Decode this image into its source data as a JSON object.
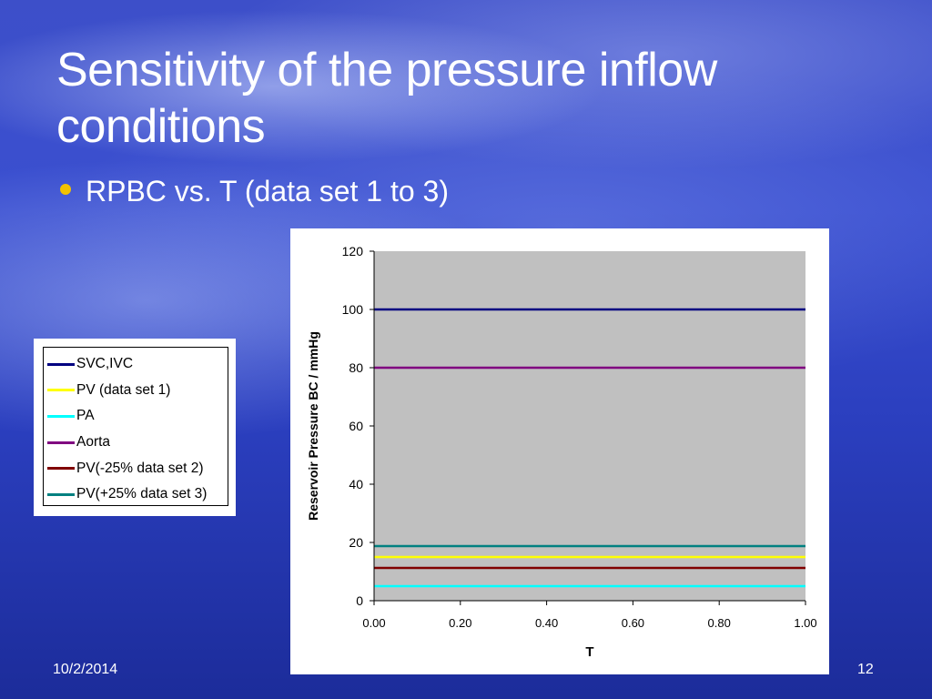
{
  "slide": {
    "title": "Sensitivity of the pressure inflow conditions",
    "bullet": "RPBC vs. T (data set 1 to 3)",
    "date": "10/2/2014",
    "page_number": "12",
    "bullet_color": "#f2c200"
  },
  "chart_data": {
    "type": "line",
    "title": "",
    "xlabel": "T",
    "ylabel": "Reservoir Pressure BC / mmHg",
    "xlim": [
      0,
      1
    ],
    "ylim": [
      0,
      120
    ],
    "x_ticks": [
      "0.00",
      "0.20",
      "0.40",
      "0.60",
      "0.80",
      "1.00"
    ],
    "y_ticks": [
      "0",
      "20",
      "40",
      "60",
      "80",
      "100",
      "120"
    ],
    "plot_background": "#c0c0c0",
    "grid": false,
    "legend_placement": "left, outside chart",
    "series": [
      {
        "name": "SVC,IVC",
        "color": "#000080",
        "x": [
          0,
          1
        ],
        "y": [
          100,
          100
        ]
      },
      {
        "name": "PV (data set 1)",
        "color": "#ffff00",
        "x": [
          0,
          1
        ],
        "y": [
          15,
          15
        ]
      },
      {
        "name": "PA",
        "color": "#00ffff",
        "x": [
          0,
          1
        ],
        "y": [
          5,
          5
        ]
      },
      {
        "name": "Aorta",
        "color": "#800080",
        "x": [
          0,
          1
        ],
        "y": [
          80,
          80
        ]
      },
      {
        "name": "PV(-25% data set 2)",
        "color": "#800000",
        "x": [
          0,
          1
        ],
        "y": [
          11.25,
          11.25
        ]
      },
      {
        "name": "PV(+25% data set 3)",
        "color": "#008080",
        "x": [
          0,
          1
        ],
        "y": [
          18.75,
          18.75
        ]
      }
    ]
  }
}
